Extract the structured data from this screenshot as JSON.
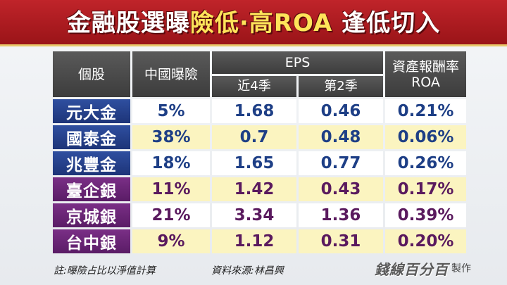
{
  "title": {
    "part1": "金融股選曝",
    "part2": "險低",
    "sep": "·",
    "part3": "高ROA",
    "part4": " 逢低切入"
  },
  "table": {
    "headers": {
      "stock": "個股",
      "china_exposure": "中國曝險",
      "eps": "EPS",
      "eps_recent4": "近4季",
      "eps_q2": "第2季",
      "roa_line1": "資產報酬率",
      "roa_line2": "ROA"
    },
    "rows": [
      {
        "name": "元大金",
        "exposure": "5%",
        "eps4": "1.68",
        "epsq2": "0.46",
        "roa": "0.21%",
        "group": "blue"
      },
      {
        "name": "國泰金",
        "exposure": "38%",
        "eps4": "0.7",
        "epsq2": "0.48",
        "roa": "0.06%",
        "group": "blue"
      },
      {
        "name": "兆豐金",
        "exposure": "18%",
        "eps4": "1.65",
        "epsq2": "0.77",
        "roa": "0.26%",
        "group": "blue"
      },
      {
        "name": "臺企銀",
        "exposure": "11%",
        "eps4": "1.42",
        "epsq2": "0.43",
        "roa": "0.17%",
        "group": "purple"
      },
      {
        "name": "京城銀",
        "exposure": "21%",
        "eps4": "3.34",
        "epsq2": "1.36",
        "roa": "0.39%",
        "group": "purple"
      },
      {
        "name": "台中銀",
        "exposure": "9%",
        "eps4": "1.12",
        "epsq2": "0.31",
        "roa": "0.20%",
        "group": "purple"
      }
    ]
  },
  "footer": {
    "note": "註:曝險占比以淨值計算",
    "source": "資料來源:林昌興",
    "brand": "錢線百分百",
    "brand_suffix": "製作"
  },
  "colors": {
    "banner_red": "#b01d22",
    "title_yellow": "#ffe45a",
    "header_gray": "#4a4a4a",
    "name_blue": "#254391",
    "name_purple": "#6a2576",
    "cell_yellow": "#fbf4c0",
    "value_blue": "#1e3f86",
    "value_purple": "#5a1a5e"
  }
}
